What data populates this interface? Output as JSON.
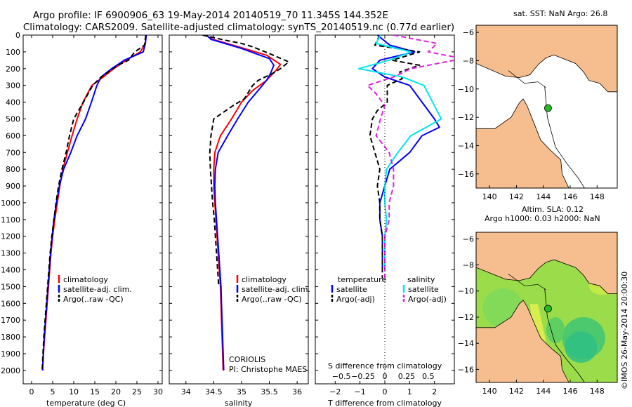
{
  "title": {
    "line1": "Argo profile: IF 6900906_63 19-May-2014 20140519_70 11.345S 144.352E",
    "line2": "Climatology: CARS2009. Satellite-adjusted climatology: synTS_20140519.nc (0.77d earlier)"
  },
  "colors": {
    "climatology": "#ff0000",
    "satellite": "#0000ff",
    "argo": "#000000",
    "satellite_salinity": "#00e5ee",
    "argo_salinity": "#e020e0",
    "land": "#f6bd8e",
    "marker": "#22bb22"
  },
  "chart_data": [
    {
      "type": "line",
      "name": "temperature-profile",
      "xlabel": "temperature (deg C)",
      "ylabel": "",
      "xlim": [
        -2,
        31
      ],
      "ylim": [
        2080,
        0
      ],
      "xticks": [
        "0",
        "5",
        "10",
        "15",
        "20",
        "25",
        "30"
      ],
      "yticks": [
        "0",
        "100",
        "200",
        "300",
        "400",
        "500",
        "600",
        "700",
        "800",
        "900",
        "1000",
        "1100",
        "1200",
        "1300",
        "1400",
        "1500",
        "1600",
        "1700",
        "1800",
        "1900",
        "2000"
      ],
      "legend": [
        "climatology",
        "satellite-adj. clim.",
        "Argo(..raw -QC)"
      ],
      "series": [
        {
          "name": "climatology",
          "style": "solid",
          "color": "#ff0000",
          "points": [
            [
              27.2,
              0
            ],
            [
              27.0,
              50
            ],
            [
              25.8,
              100
            ],
            [
              22.5,
              150
            ],
            [
              19.5,
              200
            ],
            [
              16.5,
              260
            ],
            [
              14.3,
              300
            ],
            [
              12.2,
              400
            ],
            [
              10.8,
              500
            ],
            [
              9.6,
              600
            ],
            [
              8.5,
              700
            ],
            [
              7.4,
              800
            ],
            [
              6.7,
              900
            ],
            [
              6.1,
              1000
            ],
            [
              5.5,
              1100
            ],
            [
              5.0,
              1200
            ],
            [
              4.6,
              1300
            ],
            [
              4.3,
              1400
            ],
            [
              4.0,
              1500
            ],
            [
              3.7,
              1600
            ],
            [
              3.4,
              1700
            ],
            [
              3.1,
              1800
            ],
            [
              2.8,
              1900
            ],
            [
              2.6,
              2000
            ]
          ]
        },
        {
          "name": "satellite-adj. clim.",
          "style": "solid",
          "color": "#0000ff",
          "points": [
            [
              27.2,
              0
            ],
            [
              27.0,
              50
            ],
            [
              26.5,
              100
            ],
            [
              22.0,
              150
            ],
            [
              19.0,
              200
            ],
            [
              16.5,
              250
            ],
            [
              15.5,
              300
            ],
            [
              14.2,
              400
            ],
            [
              12.8,
              500
            ],
            [
              10.8,
              600
            ],
            [
              9.3,
              700
            ],
            [
              7.6,
              800
            ],
            [
              6.6,
              900
            ],
            [
              5.9,
              1000
            ],
            [
              5.3,
              1100
            ],
            [
              4.9,
              1200
            ],
            [
              4.5,
              1300
            ],
            [
              4.2,
              1400
            ],
            [
              3.9,
              1500
            ],
            [
              3.6,
              1600
            ],
            [
              3.3,
              1700
            ],
            [
              3.0,
              1800
            ],
            [
              2.8,
              1900
            ],
            [
              2.6,
              2000
            ]
          ]
        },
        {
          "name": "Argo(..raw -QC)",
          "style": "dash",
          "color": "#000000",
          "points": [
            [
              27.1,
              0
            ],
            [
              26.8,
              60
            ],
            [
              24.5,
              100
            ],
            [
              23.0,
              150
            ],
            [
              20.5,
              180
            ],
            [
              16.5,
              250
            ],
            [
              14.5,
              300
            ],
            [
              12.3,
              400
            ],
            [
              10.0,
              500
            ],
            [
              9.0,
              600
            ],
            [
              8.2,
              700
            ],
            [
              7.2,
              800
            ],
            [
              6.4,
              900
            ],
            [
              5.8,
              1000
            ],
            [
              5.3,
              1100
            ],
            [
              4.8,
              1200
            ],
            [
              4.4,
              1300
            ],
            [
              4.1,
              1400
            ],
            [
              3.8,
              1500
            ],
            [
              3.5,
              1600
            ],
            [
              3.2,
              1700
            ],
            [
              2.9,
              1800
            ],
            [
              2.7,
              1900
            ],
            [
              2.5,
              2000
            ]
          ]
        }
      ]
    },
    {
      "type": "line",
      "name": "salinity-profile",
      "xlabel": "salinity",
      "xlim": [
        33.7,
        36.2
      ],
      "ylim": [
        2080,
        0
      ],
      "xticks": [
        "34",
        "34.5",
        "35",
        "35.5",
        "36"
      ],
      "legend": [
        "climatology",
        "satellite-adj. clim.",
        "Argo(..raw -QC)"
      ],
      "annotations": [
        "CORIOLIS",
        "PI: Christophe MAES"
      ],
      "series": [
        {
          "name": "climatology",
          "style": "solid",
          "color": "#ff0000",
          "points": [
            [
              34.35,
              0
            ],
            [
              34.48,
              25
            ],
            [
              35.0,
              75
            ],
            [
              35.45,
              120
            ],
            [
              35.7,
              175
            ],
            [
              35.62,
              210
            ],
            [
              35.45,
              270
            ],
            [
              35.2,
              330
            ],
            [
              35.0,
              400
            ],
            [
              34.82,
              500
            ],
            [
              34.62,
              600
            ],
            [
              34.52,
              700
            ],
            [
              34.5,
              800
            ],
            [
              34.5,
              900
            ],
            [
              34.52,
              1000
            ],
            [
              34.54,
              1100
            ],
            [
              34.56,
              1200
            ],
            [
              34.58,
              1300
            ],
            [
              34.6,
              1400
            ],
            [
              34.62,
              1500
            ],
            [
              34.63,
              1600
            ],
            [
              34.64,
              1700
            ],
            [
              34.65,
              1800
            ],
            [
              34.66,
              1900
            ],
            [
              34.67,
              2000
            ]
          ]
        },
        {
          "name": "satellite-adj. clim.",
          "style": "solid",
          "color": "#0000ff",
          "points": [
            [
              34.37,
              0
            ],
            [
              34.45,
              25
            ],
            [
              35.0,
              80
            ],
            [
              35.5,
              140
            ],
            [
              35.58,
              180
            ],
            [
              35.52,
              230
            ],
            [
              35.45,
              270
            ],
            [
              35.3,
              330
            ],
            [
              35.12,
              400
            ],
            [
              34.93,
              500
            ],
            [
              34.75,
              600
            ],
            [
              34.58,
              700
            ],
            [
              34.53,
              800
            ],
            [
              34.52,
              900
            ],
            [
              34.53,
              1000
            ],
            [
              34.55,
              1100
            ],
            [
              34.57,
              1200
            ],
            [
              34.59,
              1300
            ],
            [
              34.61,
              1400
            ],
            [
              34.63,
              1500
            ],
            [
              34.64,
              1600
            ],
            [
              34.65,
              1700
            ],
            [
              34.66,
              1800
            ],
            [
              34.67,
              1900
            ],
            [
              34.68,
              2000
            ]
          ]
        },
        {
          "name": "Argo(..raw -QC)",
          "style": "dash",
          "color": "#000000",
          "points": [
            [
              34.3,
              0
            ],
            [
              34.7,
              30
            ],
            [
              35.0,
              50
            ],
            [
              35.2,
              70
            ],
            [
              35.5,
              110
            ],
            [
              35.85,
              160
            ],
            [
              35.7,
              200
            ],
            [
              35.55,
              230
            ],
            [
              35.3,
              270
            ],
            [
              35.2,
              300
            ],
            [
              35.05,
              380
            ],
            [
              34.85,
              420
            ],
            [
              34.5,
              500
            ],
            [
              34.45,
              600
            ],
            [
              34.43,
              700
            ],
            [
              34.44,
              800
            ],
            [
              34.46,
              900
            ],
            [
              34.48,
              1000
            ],
            [
              34.51,
              1100
            ],
            [
              34.53,
              1200
            ],
            [
              34.55,
              1300
            ],
            [
              34.57,
              1400
            ],
            [
              34.59,
              1500
            ]
          ]
        }
      ]
    },
    {
      "type": "line",
      "name": "difference-profile",
      "xlabel": "T difference from climatology",
      "xlabel_top": "S difference from climatology",
      "xlim": [
        -2.8,
        2.8
      ],
      "ylim": [
        2080,
        0
      ],
      "xticks": [
        "−2",
        "−1",
        "0",
        "1",
        "2"
      ],
      "s_xticks": [
        "−0.5",
        "−0.25",
        "0",
        "0.25",
        "0.5"
      ],
      "legend_left_title": "temperature",
      "legend_right_title": "salinity",
      "legend": [
        "satellite",
        "Argo(-adj)",
        "satellite",
        "Argo(-adj)"
      ],
      "series": [
        {
          "name": "temperature satellite",
          "style": "solid",
          "color": "#0000ff",
          "points": [
            [
              -0.3,
              0
            ],
            [
              0.2,
              60
            ],
            [
              1.2,
              100
            ],
            [
              -0.2,
              150
            ],
            [
              -0.5,
              200
            ],
            [
              0.0,
              250
            ],
            [
              1.0,
              300
            ],
            [
              1.5,
              400
            ],
            [
              2.0,
              500
            ],
            [
              2.2,
              550
            ],
            [
              1.5,
              600
            ],
            [
              1.0,
              700
            ],
            [
              0.2,
              800
            ],
            [
              0.0,
              900
            ],
            [
              -0.2,
              1000
            ],
            [
              -0.2,
              1100
            ],
            [
              -0.1,
              1200
            ],
            [
              -0.1,
              1300
            ],
            [
              -0.1,
              1400
            ]
          ]
        },
        {
          "name": "temperature Argo(-adj)",
          "style": "dash",
          "color": "#000000",
          "points": [
            [
              -0.2,
              0
            ],
            [
              -0.4,
              60
            ],
            [
              1.4,
              100
            ],
            [
              0.3,
              150
            ],
            [
              1.4,
              180
            ],
            [
              0.6,
              220
            ],
            [
              0.7,
              260
            ],
            [
              0.1,
              300
            ],
            [
              0.1,
              400
            ],
            [
              -0.3,
              450
            ],
            [
              -0.5,
              500
            ],
            [
              -0.6,
              600
            ],
            [
              -0.4,
              700
            ],
            [
              -0.2,
              800
            ],
            [
              -0.3,
              900
            ],
            [
              -0.2,
              1000
            ],
            [
              -0.2,
              1100
            ],
            [
              -0.1,
              1200
            ],
            [
              -0.1,
              1300
            ],
            [
              -0.1,
              1450
            ]
          ]
        },
        {
          "name": "salinity satellite",
          "style": "solid",
          "color": "#00e5ee",
          "points": [
            [
              -0.05,
              0
            ],
            [
              -0.1,
              50
            ],
            [
              0.3,
              100
            ],
            [
              0.05,
              150
            ],
            [
              -0.3,
              200
            ],
            [
              0.2,
              250
            ],
            [
              0.45,
              300
            ],
            [
              0.55,
              400
            ],
            [
              0.65,
              500
            ],
            [
              0.3,
              600
            ],
            [
              0.15,
              700
            ],
            [
              0.02,
              800
            ],
            [
              0.0,
              900
            ],
            [
              0.0,
              1000
            ],
            [
              0.02,
              1100
            ],
            [
              0.0,
              1200
            ],
            [
              0.0,
              1400
            ]
          ]
        },
        {
          "name": "salinity Argo(-adj)",
          "style": "dash",
          "color": "#e020e0",
          "points": [
            [
              0.1,
              0
            ],
            [
              0.6,
              50
            ],
            [
              0.5,
              100
            ],
            [
              0.9,
              140
            ],
            [
              0.3,
              200
            ],
            [
              0.1,
              250
            ],
            [
              -0.2,
              300
            ],
            [
              -0.1,
              350
            ],
            [
              0.0,
              420
            ],
            [
              -0.05,
              500
            ],
            [
              -0.1,
              600
            ],
            [
              0.05,
              700
            ],
            [
              0.1,
              800
            ],
            [
              0.1,
              900
            ],
            [
              0.05,
              1000
            ],
            [
              0.05,
              1100
            ],
            [
              0.0,
              1200
            ],
            [
              0.0,
              1300
            ],
            [
              0.0,
              1450
            ]
          ]
        }
      ]
    },
    {
      "type": "map",
      "name": "sst-map",
      "title": "sat. SST: NaN Argo: 26.8",
      "xlim": [
        139,
        149.5
      ],
      "ylim": [
        -17,
        -5.5
      ],
      "xticks": [
        "140",
        "142",
        "144",
        "146",
        "148"
      ],
      "yticks": [
        "−6",
        "−8",
        "−10",
        "−12",
        "−14",
        "−16"
      ],
      "marker": {
        "lon": 144.35,
        "lat": -11.35
      }
    },
    {
      "type": "map",
      "name": "sla-map",
      "title": "Altim. SLA: 0.12",
      "subtitle": "Argo h1000: 0.03 h2000: NaN",
      "xlim": [
        139,
        149.5
      ],
      "ylim": [
        -17,
        -5.5
      ],
      "xticks": [
        "140",
        "142",
        "144",
        "146",
        "148"
      ],
      "yticks": [
        "−6",
        "−8",
        "−10",
        "−12",
        "−14",
        "−16"
      ],
      "marker": {
        "lon": 144.35,
        "lat": -11.35
      }
    }
  ],
  "footer": "©IMOS 26-May-2014 20:00:30"
}
